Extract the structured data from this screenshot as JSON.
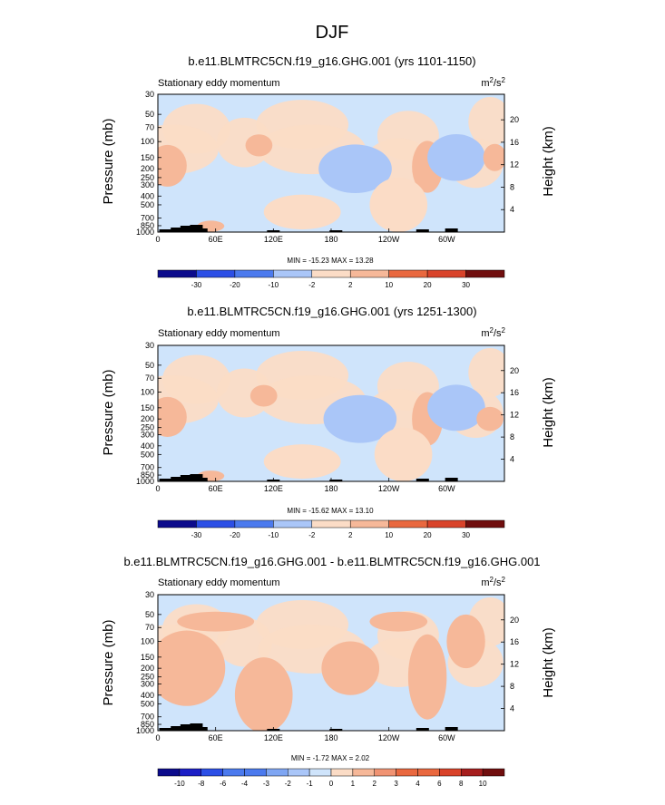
{
  "figure": {
    "title": "DJF"
  },
  "colors": {
    "bg_blue": "#cfe4fb",
    "bg_peach": "#fbdcc6",
    "palette": [
      "#0c0b8c",
      "#1c1fc6",
      "#2c4fe6",
      "#4b7aee",
      "#7fa6f3",
      "#aac6f8",
      "#cfe4fb",
      "#fbdcc6",
      "#f6b899",
      "#f09373",
      "#e9683f",
      "#d9432a",
      "#a61e1e",
      "#700e0e"
    ]
  },
  "chart_data": [
    {
      "type": "heatmap",
      "panel": "panel1",
      "title": "b.e11.BLMTRC5CN.f19_g16.GHG.001 (yrs 1101-1150)",
      "subtitle_left": "Stationary eddy momentum",
      "units": {
        "base": "m",
        "sup1": "2",
        "mid": "/s",
        "sup2": "2"
      },
      "xlabel": "",
      "ylabel": "Pressure (mb)",
      "y2label": "Height (km)",
      "x_ticks": [
        "0",
        "60E",
        "120E",
        "180",
        "120W",
        "60W"
      ],
      "x_tick_lon": [
        0,
        60,
        120,
        180,
        240,
        300
      ],
      "xlim": [
        0,
        360
      ],
      "y_ticks": [
        30,
        50,
        70,
        100,
        150,
        200,
        250,
        300,
        400,
        500,
        700,
        850,
        1000
      ],
      "ylim": [
        30,
        1000
      ],
      "y2_ticks": [
        4,
        8,
        12,
        16,
        20
      ],
      "stats": "MIN = -15.23  MAX =  13.28",
      "colorbar_labels": [
        "-30",
        "-20",
        "-10",
        "-2",
        "2",
        "10",
        "20",
        "30"
      ],
      "features": [
        {
          "lon": 10,
          "p": 185,
          "value": 13,
          "rx": 14,
          "ry": 55
        },
        {
          "lon": 10,
          "p": 185,
          "value": 6,
          "rx": 20,
          "ry": 90
        },
        {
          "lon": 105,
          "p": 110,
          "value": 4,
          "rx": 14,
          "ry": 30
        },
        {
          "lon": 205,
          "p": 200,
          "value": -6,
          "rx": 28,
          "ry": 75
        },
        {
          "lon": 205,
          "p": 200,
          "value": -3,
          "rx": 38,
          "ry": 110
        },
        {
          "lon": 280,
          "p": 180,
          "value": 8,
          "rx": 10,
          "ry": 70
        },
        {
          "lon": 280,
          "p": 190,
          "value": 3,
          "rx": 16,
          "ry": 110
        },
        {
          "lon": 310,
          "p": 150,
          "value": -15,
          "rx": 10,
          "ry": 25
        },
        {
          "lon": 310,
          "p": 150,
          "value": -8,
          "rx": 20,
          "ry": 50
        },
        {
          "lon": 310,
          "p": 150,
          "value": -3,
          "rx": 30,
          "ry": 80
        },
        {
          "lon": 350,
          "p": 150,
          "value": 4,
          "rx": 12,
          "ry": 50
        },
        {
          "lon": 55,
          "p": 860,
          "value": 5,
          "rx": 14,
          "ry": 120
        },
        {
          "lon": 150,
          "p": 600,
          "value": 2,
          "rx": 40,
          "ry": 250
        },
        {
          "lon": 250,
          "p": 500,
          "value": 2,
          "rx": 30,
          "ry": 300
        }
      ]
    },
    {
      "type": "heatmap",
      "panel": "panel2",
      "title": "b.e11.BLMTRC5CN.f19_g16.GHG.001 (yrs 1251-1300)",
      "subtitle_left": "Stationary eddy momentum",
      "units": {
        "base": "m",
        "sup1": "2",
        "mid": "/s",
        "sup2": "2"
      },
      "xlabel": "",
      "ylabel": "Pressure (mb)",
      "y2label": "Height (km)",
      "x_ticks": [
        "0",
        "60E",
        "120E",
        "180",
        "120W",
        "60W"
      ],
      "x_tick_lon": [
        0,
        60,
        120,
        180,
        240,
        300
      ],
      "xlim": [
        0,
        360
      ],
      "y_ticks": [
        30,
        50,
        70,
        100,
        150,
        200,
        250,
        300,
        400,
        500,
        700,
        850,
        1000
      ],
      "ylim": [
        30,
        1000
      ],
      "y2_ticks": [
        4,
        8,
        12,
        16,
        20
      ],
      "stats": "MIN = -15.62  MAX =  13.10",
      "colorbar_labels": [
        "-30",
        "-20",
        "-10",
        "-2",
        "2",
        "10",
        "20",
        "30"
      ],
      "features": [
        {
          "lon": 10,
          "p": 190,
          "value": 13,
          "rx": 14,
          "ry": 55
        },
        {
          "lon": 10,
          "p": 190,
          "value": 6,
          "rx": 20,
          "ry": 90
        },
        {
          "lon": 110,
          "p": 110,
          "value": 4,
          "rx": 14,
          "ry": 30
        },
        {
          "lon": 210,
          "p": 200,
          "value": -6,
          "rx": 28,
          "ry": 75
        },
        {
          "lon": 210,
          "p": 200,
          "value": -3,
          "rx": 38,
          "ry": 110
        },
        {
          "lon": 280,
          "p": 200,
          "value": 8,
          "rx": 10,
          "ry": 75
        },
        {
          "lon": 280,
          "p": 200,
          "value": 3,
          "rx": 16,
          "ry": 120
        },
        {
          "lon": 310,
          "p": 150,
          "value": -15,
          "rx": 10,
          "ry": 25
        },
        {
          "lon": 310,
          "p": 150,
          "value": -8,
          "rx": 20,
          "ry": 50
        },
        {
          "lon": 310,
          "p": 150,
          "value": -3,
          "rx": 30,
          "ry": 80
        },
        {
          "lon": 345,
          "p": 200,
          "value": 4,
          "rx": 14,
          "ry": 60
        },
        {
          "lon": 55,
          "p": 870,
          "value": 5,
          "rx": 14,
          "ry": 120
        },
        {
          "lon": 150,
          "p": 600,
          "value": 2,
          "rx": 40,
          "ry": 250
        },
        {
          "lon": 255,
          "p": 500,
          "value": 2,
          "rx": 30,
          "ry": 300
        }
      ]
    },
    {
      "type": "heatmap",
      "panel": "panel3",
      "title": "b.e11.BLMTRC5CN.f19_g16.GHG.001 - b.e11.BLMTRC5CN.f19_g16.GHG.001",
      "subtitle_left": "Stationary eddy momentum",
      "units": {
        "base": "m",
        "sup1": "2",
        "mid": "/s",
        "sup2": "2"
      },
      "xlabel": "",
      "ylabel": "Pressure (mb)",
      "y2label": "Height (km)",
      "x_ticks": [
        "0",
        "60E",
        "120E",
        "180",
        "120W",
        "60W"
      ],
      "x_tick_lon": [
        0,
        60,
        120,
        180,
        240,
        300
      ],
      "xlim": [
        0,
        360
      ],
      "y_ticks": [
        30,
        50,
        70,
        100,
        150,
        200,
        250,
        300,
        400,
        500,
        700,
        850,
        1000
      ],
      "ylim": [
        30,
        1000
      ],
      "y2_ticks": [
        4,
        8,
        12,
        16,
        20
      ],
      "stats": "MIN = -1.72  MAX =  2.02",
      "colorbar_labels": [
        "-10",
        "-8",
        "-6",
        "-4",
        "-3",
        "-2",
        "-1",
        "0",
        "1",
        "2",
        "3",
        "4",
        "6",
        "8",
        "10"
      ],
      "features": [
        {
          "lon": 30,
          "p": 200,
          "value": 1,
          "rx": 40,
          "ry": 150
        },
        {
          "lon": 110,
          "p": 400,
          "value": 1,
          "rx": 30,
          "ry": 300
        },
        {
          "lon": 200,
          "p": 200,
          "value": 1,
          "rx": 30,
          "ry": 120
        },
        {
          "lon": 280,
          "p": 250,
          "value": 1,
          "rx": 20,
          "ry": 200
        },
        {
          "lon": 310,
          "p": 130,
          "value": -1.5,
          "rx": 8,
          "ry": 25
        },
        {
          "lon": 320,
          "p": 100,
          "value": 1,
          "rx": 20,
          "ry": 60
        },
        {
          "lon": 60,
          "p": 60,
          "value": 1,
          "rx": 40,
          "ry": 15
        },
        {
          "lon": 250,
          "p": 60,
          "value": 1,
          "rx": 30,
          "ry": 15
        }
      ]
    }
  ]
}
